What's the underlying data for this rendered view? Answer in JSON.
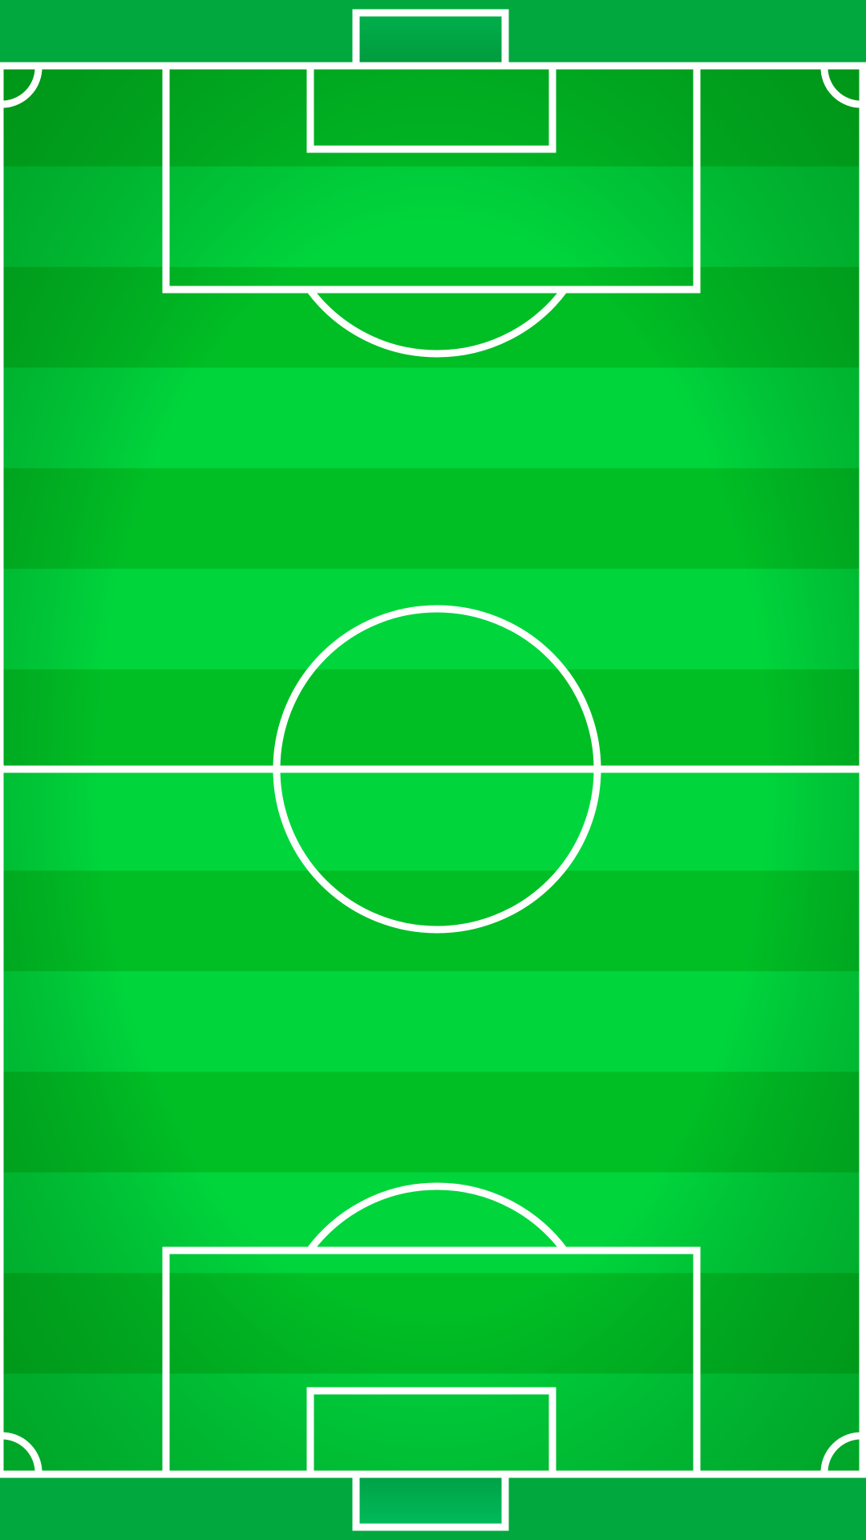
{
  "pitch": {
    "colors": {
      "outer": "#00a83e",
      "stripe_light": "#00d63c",
      "stripe_dark": "#00bf25",
      "corner_shade": "#0a8f12",
      "line": "#ffffff",
      "goal_fill_top": "#00a347",
      "goal_fill_bottom": "#00b85a"
    },
    "stripe_count": 14,
    "markings": {
      "center_circle": true,
      "halfway_line": true,
      "penalty_areas": 2,
      "goal_areas": 2,
      "penalty_arcs": 2,
      "corner_arcs": 4,
      "goals": 2
    }
  }
}
